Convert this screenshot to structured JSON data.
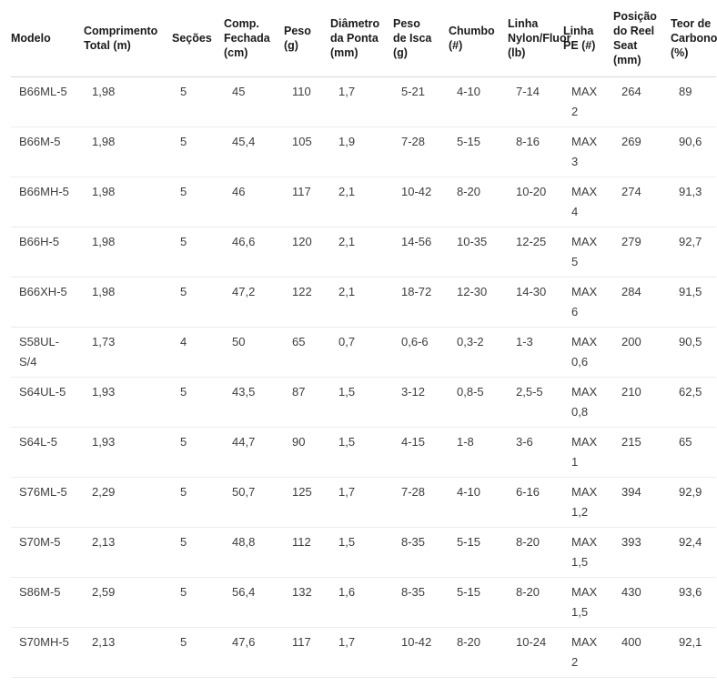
{
  "colors": {
    "header_text": "#1a1a1a",
    "cell_text": "#3d3d3d",
    "header_border": "#d9d9d9",
    "row_border": "#ededed",
    "background": "#ffffff"
  },
  "table": {
    "columns": [
      {
        "key": "modelo",
        "label": "Modelo"
      },
      {
        "key": "comprimento_total_m",
        "label": "Comprimento Total (m)"
      },
      {
        "key": "secoes",
        "label": "Seções"
      },
      {
        "key": "comp_fechada_cm",
        "label": "Comp. Fechada (cm)"
      },
      {
        "key": "peso_g",
        "label": "Peso (g)"
      },
      {
        "key": "diametro_da_ponta_mm",
        "label": "Diâmetro da Ponta (mm)"
      },
      {
        "key": "peso_de_isca_g",
        "label": "Peso de Isca (g)"
      },
      {
        "key": "chumbo",
        "label": "Chumbo (#)"
      },
      {
        "key": "linha_nylon_fluor_lb",
        "label": "Linha Nylon/Fluor (lb)"
      },
      {
        "key": "linha_pe",
        "label": "Linha PE (#)"
      },
      {
        "key": "posicao_reel_seat_mm",
        "label": "Posição do Reel Seat (mm)"
      },
      {
        "key": "teor_carbono_pct",
        "label": "Teor de Carbono (%)"
      }
    ],
    "rows": [
      [
        "B66ML-5",
        "1,98",
        "5",
        "45",
        "110",
        "1,7",
        "5-21",
        "4-10",
        "7-14",
        "MAX 2",
        "264",
        "89"
      ],
      [
        "B66M-5",
        "1,98",
        "5",
        "45,4",
        "105",
        "1,9",
        "7-28",
        "5-15",
        "8-16",
        "MAX 3",
        "269",
        "90,6"
      ],
      [
        "B66MH-5",
        "1,98",
        "5",
        "46",
        "117",
        "2,1",
        "10-42",
        "8-20",
        "10-20",
        "MAX 4",
        "274",
        "91,3"
      ],
      [
        "B66H-5",
        "1,98",
        "5",
        "46,6",
        "120",
        "2,1",
        "14-56",
        "10-35",
        "12-25",
        "MAX 5",
        "279",
        "92,7"
      ],
      [
        "B66XH-5",
        "1,98",
        "5",
        "47,2",
        "122",
        "2,1",
        "18-72",
        "12-30",
        "14-30",
        "MAX 6",
        "284",
        "91,5"
      ],
      [
        "S58UL-S/4",
        "1,73",
        "4",
        "50",
        "65",
        "0,7",
        "0,6-6",
        "0,3-2",
        "1-3",
        "MAX 0,6",
        "200",
        "90,5"
      ],
      [
        "S64UL-5",
        "1,93",
        "5",
        "43,5",
        "87",
        "1,5",
        "3-12",
        "0,8-5",
        "2,5-5",
        "MAX 0,8",
        "210",
        "62,5"
      ],
      [
        "S64L-5",
        "1,93",
        "5",
        "44,7",
        "90",
        "1,5",
        "4-15",
        "1-8",
        "3-6",
        "MAX 1",
        "215",
        "65"
      ],
      [
        "S76ML-5",
        "2,29",
        "5",
        "50,7",
        "125",
        "1,7",
        "7-28",
        "4-10",
        "6-16",
        "MAX 1,2",
        "394",
        "92,9"
      ],
      [
        "S70M-5",
        "2,13",
        "5",
        "48,8",
        "112",
        "1,5",
        "8-35",
        "5-15",
        "8-20",
        "MAX 1,5",
        "393",
        "92,4"
      ],
      [
        "S86M-5",
        "2,59",
        "5",
        "56,4",
        "132",
        "1,6",
        "8-35",
        "5-15",
        "8-20",
        "MAX 1,5",
        "430",
        "93,6"
      ],
      [
        "S70MH-5",
        "2,13",
        "5",
        "47,6",
        "117",
        "1,7",
        "10-42",
        "8-20",
        "10-24",
        "MAX 2",
        "400",
        "92,1"
      ]
    ]
  }
}
